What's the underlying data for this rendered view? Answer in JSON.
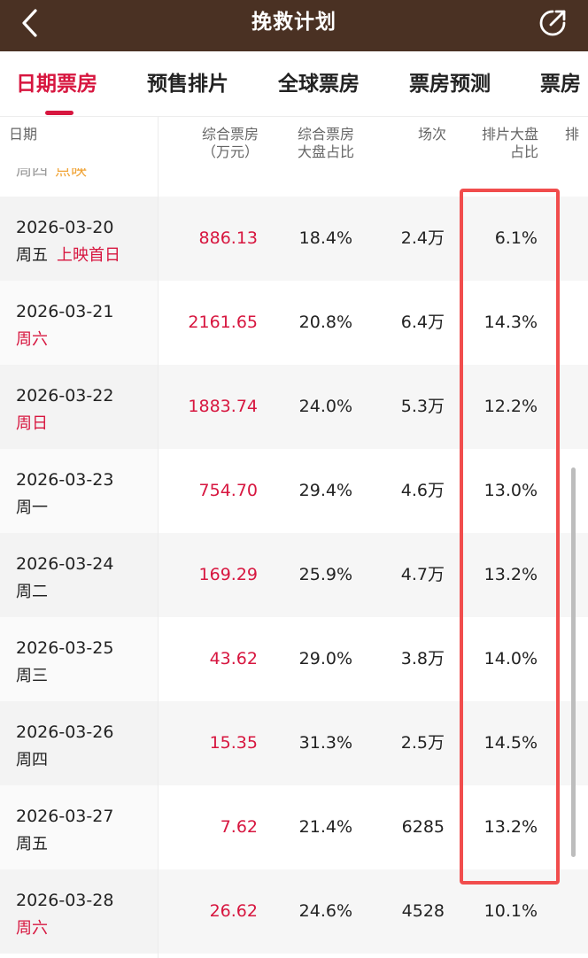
{
  "header": {
    "title": "挽救计划",
    "back_icon": "chevron-left-icon",
    "share_icon": "share-icon"
  },
  "tabs": [
    {
      "label": "日期票房",
      "active": true
    },
    {
      "label": "预售排片",
      "active": false
    },
    {
      "label": "全球票房",
      "active": false
    },
    {
      "label": "票房预测",
      "active": false
    },
    {
      "label": "票房",
      "active": false
    }
  ],
  "table": {
    "columns": {
      "date": "日期",
      "box_line1": "综合票房",
      "box_line2": "（万元）",
      "share_line1": "综合票房",
      "share_line2": "大盘占比",
      "shows": "场次",
      "sched_line1": "排片大盘",
      "sched_line2": "占比",
      "more": "排"
    },
    "partial_row": {
      "weekday": "周四",
      "tag": "点映"
    },
    "rows": [
      {
        "date": "2026-03-20",
        "weekday": "周五",
        "weekday_red": false,
        "tag": "上映首日",
        "box": "886.13",
        "share": "18.4%",
        "shows": "2.4万",
        "sched": "6.1%"
      },
      {
        "date": "2026-03-21",
        "weekday": "周六",
        "weekday_red": true,
        "tag": "",
        "box": "2161.65",
        "share": "20.8%",
        "shows": "6.4万",
        "sched": "14.3%"
      },
      {
        "date": "2026-03-22",
        "weekday": "周日",
        "weekday_red": true,
        "tag": "",
        "box": "1883.74",
        "share": "24.0%",
        "shows": "5.3万",
        "sched": "12.2%"
      },
      {
        "date": "2026-03-23",
        "weekday": "周一",
        "weekday_red": false,
        "tag": "",
        "box": "754.70",
        "share": "29.4%",
        "shows": "4.6万",
        "sched": "13.0%"
      },
      {
        "date": "2026-03-24",
        "weekday": "周二",
        "weekday_red": false,
        "tag": "",
        "box": "169.29",
        "share": "25.9%",
        "shows": "4.7万",
        "sched": "13.2%"
      },
      {
        "date": "2026-03-25",
        "weekday": "周三",
        "weekday_red": false,
        "tag": "",
        "box": "43.62",
        "share": "29.0%",
        "shows": "3.8万",
        "sched": "14.0%"
      },
      {
        "date": "2026-03-26",
        "weekday": "周四",
        "weekday_red": false,
        "tag": "",
        "box": "15.35",
        "share": "31.3%",
        "shows": "2.5万",
        "sched": "14.5%"
      },
      {
        "date": "2026-03-27",
        "weekday": "周五",
        "weekday_red": false,
        "tag": "",
        "box": "7.62",
        "share": "21.4%",
        "shows": "6285",
        "sched": "13.2%"
      },
      {
        "date": "2026-03-28",
        "weekday": "周六",
        "weekday_red": true,
        "tag": "",
        "box": "26.62",
        "share": "24.6%",
        "shows": "4528",
        "sched": "10.1%"
      }
    ]
  },
  "colors": {
    "header_bg": "#4a3123",
    "accent": "#d7163f",
    "highlight_border": "#f14d4d",
    "preview_tag": "#f0a437"
  }
}
